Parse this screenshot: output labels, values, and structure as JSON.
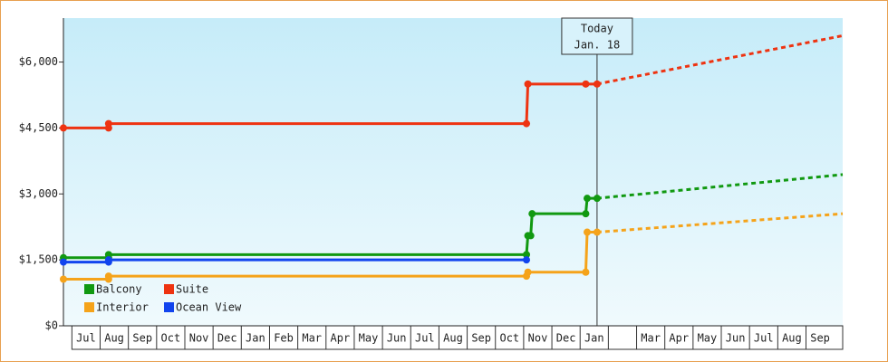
{
  "chart_data": {
    "type": "line",
    "categories": [
      "Jul",
      "Aug",
      "Sep",
      "Oct",
      "Nov",
      "Dec",
      "Jan",
      "Feb",
      "Mar",
      "Apr",
      "May",
      "Jun",
      "Jul",
      "Aug",
      "Sep",
      "Oct",
      "Nov",
      "Dec",
      "Jan",
      null,
      "Mar",
      "Apr",
      "May",
      "Jun",
      "Jul",
      "Aug",
      "Sep"
    ],
    "xlim": [
      -0.3,
      27.3
    ],
    "ylim": [
      0,
      7000
    ],
    "yticks": [
      {
        "value": 0,
        "label": "$0"
      },
      {
        "value": 1500,
        "label": "$1,500"
      },
      {
        "value": 3000,
        "label": "$3,000"
      },
      {
        "value": 4500,
        "label": "$4,500"
      },
      {
        "value": 6000,
        "label": "$6,000"
      }
    ],
    "annotation": {
      "x": 18.6,
      "lines": [
        "Today",
        "Jan. 18"
      ]
    },
    "legend": "bottom-left",
    "series": [
      {
        "name": "Balcony",
        "color": "#119911",
        "x": [
          -0.3,
          1.3,
          1.3,
          16.1,
          16.15,
          16.25,
          16.3,
          18.2,
          18.25,
          18.6
        ],
        "values": [
          1550,
          1550,
          1620,
          1620,
          2050,
          2050,
          2550,
          2550,
          2900,
          2900
        ],
        "projection_x": [
          18.6,
          27.3
        ],
        "projection_values": [
          2900,
          3440
        ]
      },
      {
        "name": "Suite",
        "color": "#ee3311",
        "x": [
          -0.3,
          1.3,
          1.3,
          16.1,
          16.15,
          18.2,
          18.6
        ],
        "values": [
          4500,
          4500,
          4600,
          4600,
          5500,
          5500,
          5500
        ],
        "projection_x": [
          18.6,
          27.3
        ],
        "projection_values": [
          5500,
          6600
        ]
      },
      {
        "name": "Interior",
        "color": "#f5a31a",
        "x": [
          -0.3,
          1.3,
          1.3,
          16.1,
          16.15,
          18.2,
          18.25,
          18.6
        ],
        "values": [
          1060,
          1060,
          1130,
          1130,
          1220,
          1220,
          2130,
          2130
        ],
        "projection_x": [
          18.6,
          27.3
        ],
        "projection_values": [
          2130,
          2550
        ]
      },
      {
        "name": "Ocean View",
        "color": "#1144ee",
        "x": [
          -0.3,
          1.3,
          1.3,
          16.1
        ],
        "values": [
          1450,
          1450,
          1500,
          1500
        ]
      }
    ]
  }
}
